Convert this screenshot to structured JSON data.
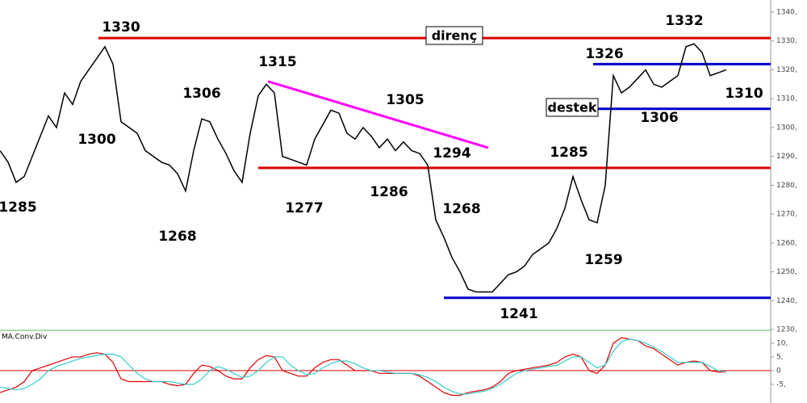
{
  "chart_data": [
    {
      "type": "line",
      "color": "#000000",
      "values": [
        1292,
        1288,
        1281,
        1283,
        1290,
        1297,
        1304,
        1300,
        1312,
        1308,
        1316,
        1320,
        1324,
        1328,
        1322,
        1302,
        1300,
        1298,
        1292,
        1290,
        1288,
        1287,
        1284,
        1278,
        1292,
        1303,
        1302,
        1296,
        1291,
        1285,
        1281,
        1298,
        1311,
        1315,
        1312,
        1290,
        1289,
        1288,
        1287,
        1296,
        1301,
        1306,
        1305,
        1298,
        1296,
        1300,
        1297,
        1293,
        1296,
        1292,
        1295,
        1292,
        1291,
        1287,
        1268,
        1262,
        1255,
        1250,
        1244,
        1243,
        1243,
        1243,
        1246,
        1249,
        1250,
        1252,
        1256,
        1258,
        1260,
        1265,
        1272,
        1283,
        1275,
        1268,
        1267,
        1280,
        1318,
        1312,
        1314,
        1317,
        1320,
        1315,
        1314,
        1316,
        1318,
        1328,
        1329,
        1326,
        1318,
        1319,
        1320
      ],
      "ylim": [
        1230,
        1344.2
      ],
      "yticks": [
        {
          "value": 1230,
          "label": "1230,"
        },
        {
          "value": 1240,
          "label": "1240,"
        },
        {
          "value": 1250,
          "label": "1250,"
        },
        {
          "value": 1260,
          "label": "1260,"
        },
        {
          "value": 1270,
          "label": "1270,"
        },
        {
          "value": 1280,
          "label": "1280,"
        },
        {
          "value": 1290,
          "label": "1290,"
        },
        {
          "value": 1300,
          "label": "1300,"
        },
        {
          "value": 1310,
          "label": "1310,"
        },
        {
          "value": 1320,
          "label": "1320,"
        },
        {
          "value": 1330,
          "label": "1330,"
        },
        {
          "value": 1340,
          "label": "1340,"
        }
      ],
      "levels": [
        {
          "value": 1331,
          "color": "#e00000",
          "label": "direnç"
        },
        {
          "value": 1286,
          "color": "#e00000"
        },
        {
          "value": 1322,
          "color": "#0000cc"
        },
        {
          "value": 1306.5,
          "color": "#0000cc",
          "label": "destek"
        },
        {
          "value": 1241,
          "color": "#0000cc"
        }
      ],
      "trendline": {
        "values": [
          1316,
          1293
        ],
        "color": "#ff00ff"
      },
      "annotations": [
        1330,
        1300,
        1285,
        1306,
        1268,
        1315,
        1277,
        1305,
        1286,
        1294,
        1268,
        1241,
        1285,
        1259,
        1326,
        1306,
        1332,
        1310
      ]
    },
    {
      "type": "line",
      "title": "MA.Conv.Div",
      "series": [
        {
          "color": "#e00000",
          "values": [
            -8,
            -7,
            -6,
            -4,
            0,
            1,
            2,
            3,
            4,
            5,
            5,
            6,
            6.5,
            6,
            3,
            -3,
            -4,
            -4,
            -4,
            -4,
            -4,
            -5,
            -5.5,
            -5,
            -1,
            2,
            1.5,
            0,
            -2,
            -3,
            -3,
            1,
            4,
            5.5,
            5,
            0,
            -1,
            -2,
            -2,
            1,
            3,
            4,
            4,
            2,
            0,
            0,
            0,
            -1,
            -1,
            -1,
            -1,
            -1,
            -2,
            -4,
            -6,
            -8,
            -9,
            -9,
            -8,
            -7.5,
            -7,
            -6,
            -4,
            -1,
            0,
            0.5,
            1,
            1.5,
            2,
            3,
            5,
            6,
            5,
            0,
            -1,
            2,
            10,
            12,
            11.5,
            11,
            9,
            8,
            6,
            4,
            2,
            3,
            3.5,
            3,
            0,
            -0.5,
            -0.5
          ]
        },
        {
          "color": "#33cccc",
          "values": [
            -6,
            -6.5,
            -7,
            -6.5,
            -5,
            -3,
            0,
            1.5,
            2.5,
            3.5,
            4.5,
            5,
            5.5,
            6,
            6,
            5,
            2,
            -1,
            -3,
            -4,
            -4,
            -4,
            -4.5,
            -5,
            -5,
            -3,
            0,
            1.5,
            0.5,
            -1,
            -2.5,
            -2,
            0,
            3,
            5,
            5,
            2,
            0,
            -1.5,
            -1,
            1,
            2.5,
            3.5,
            3.5,
            2.5,
            1,
            0,
            0,
            -0.5,
            -1,
            -1,
            -1,
            -1.5,
            -2.5,
            -4,
            -6,
            -7.5,
            -8.5,
            -8.5,
            -8,
            -7.5,
            -6.5,
            -5,
            -3,
            -1,
            0,
            0.5,
            1,
            1.5,
            2,
            3.5,
            5,
            5,
            3,
            1,
            2,
            7,
            10.5,
            11.5,
            11,
            10,
            8.5,
            7,
            5,
            3,
            3,
            3,
            3,
            1.5,
            0,
            -0.5
          ]
        }
      ],
      "ylim": [
        -11.8,
        14.4
      ],
      "yticks": [
        {
          "value": -5,
          "label": "-5,"
        },
        0,
        {
          "value": 5,
          "label": "5,"
        },
        {
          "value": 10,
          "label": "10,"
        }
      ],
      "zero_line": {
        "value": 0,
        "color": "#e00000"
      }
    }
  ]
}
